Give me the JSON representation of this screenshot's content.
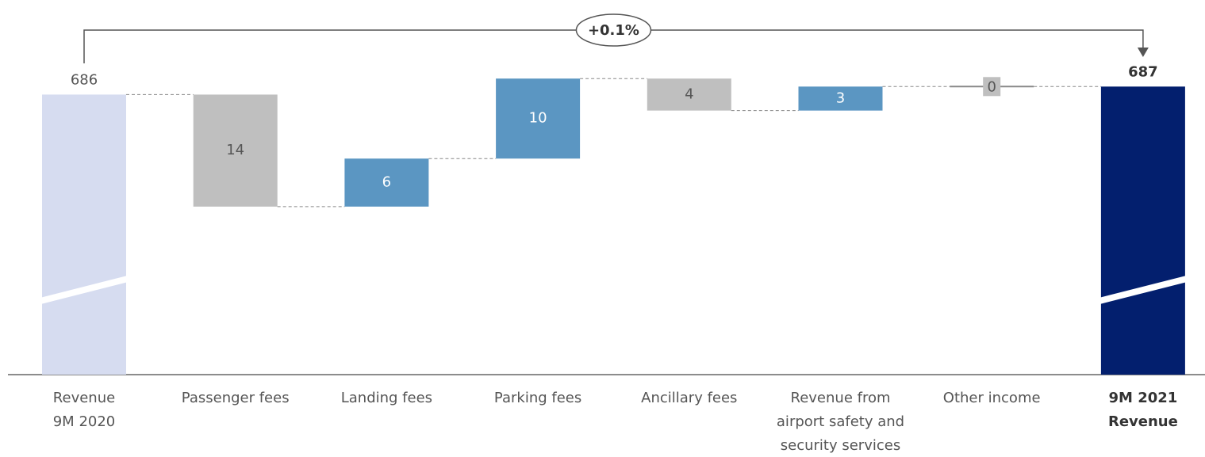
{
  "chart_data": {
    "type": "waterfall",
    "annotation": "+0.1%",
    "categories": [
      "Revenue 9M 2020",
      "Passenger fees",
      "Landing fees",
      "Parking fees",
      "Ancillary fees",
      "Revenue from airport safety and security services",
      "Other income",
      "9M 2021 Revenue"
    ],
    "measure": [
      "absolute",
      "relative",
      "relative",
      "relative",
      "relative",
      "relative",
      "relative",
      "absolute"
    ],
    "values": [
      686,
      -14,
      6,
      10,
      -4,
      3,
      0,
      687
    ],
    "value_labels": [
      "686",
      "14",
      "6",
      "10",
      "4",
      "3",
      "0",
      "687"
    ],
    "colors": [
      "#d6dcf0",
      "#bfbfbf",
      "#5b96c2",
      "#5b96c2",
      "#bfbfbf",
      "#5b96c2",
      "#bfbfbf",
      "#031f6e"
    ],
    "ylim": [
      651,
      690
    ]
  }
}
